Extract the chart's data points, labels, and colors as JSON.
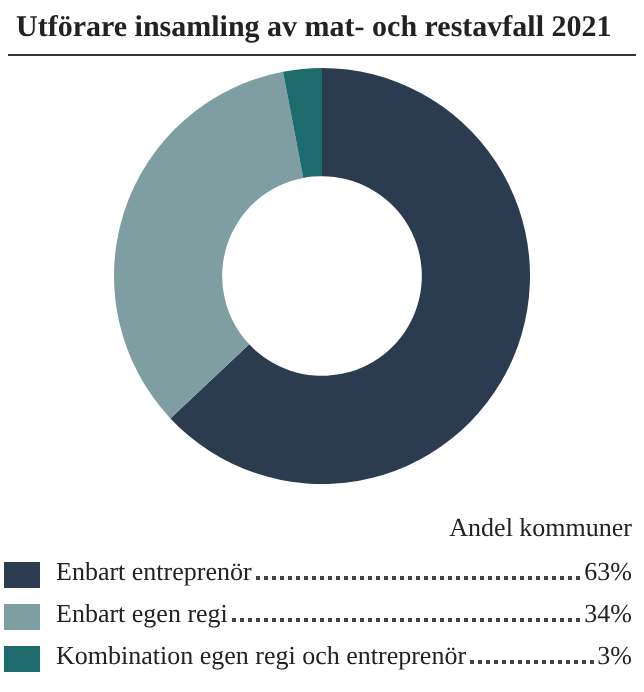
{
  "chart_data": {
    "type": "donut",
    "title": "Utförare insamling av mat- och restavfall 2021",
    "legend_title": "Andel kommuner",
    "legend": "bottom",
    "categories": [
      "Enbart entreprenör",
      "Enbart egen regi",
      "Kombination egen regi och entreprenör"
    ],
    "values": [
      63,
      34,
      3
    ],
    "colors": [
      "#2b3b50",
      "#7f9ea2",
      "#1d6b6c"
    ],
    "value_labels": [
      "63%",
      "34%",
      "3%"
    ]
  }
}
